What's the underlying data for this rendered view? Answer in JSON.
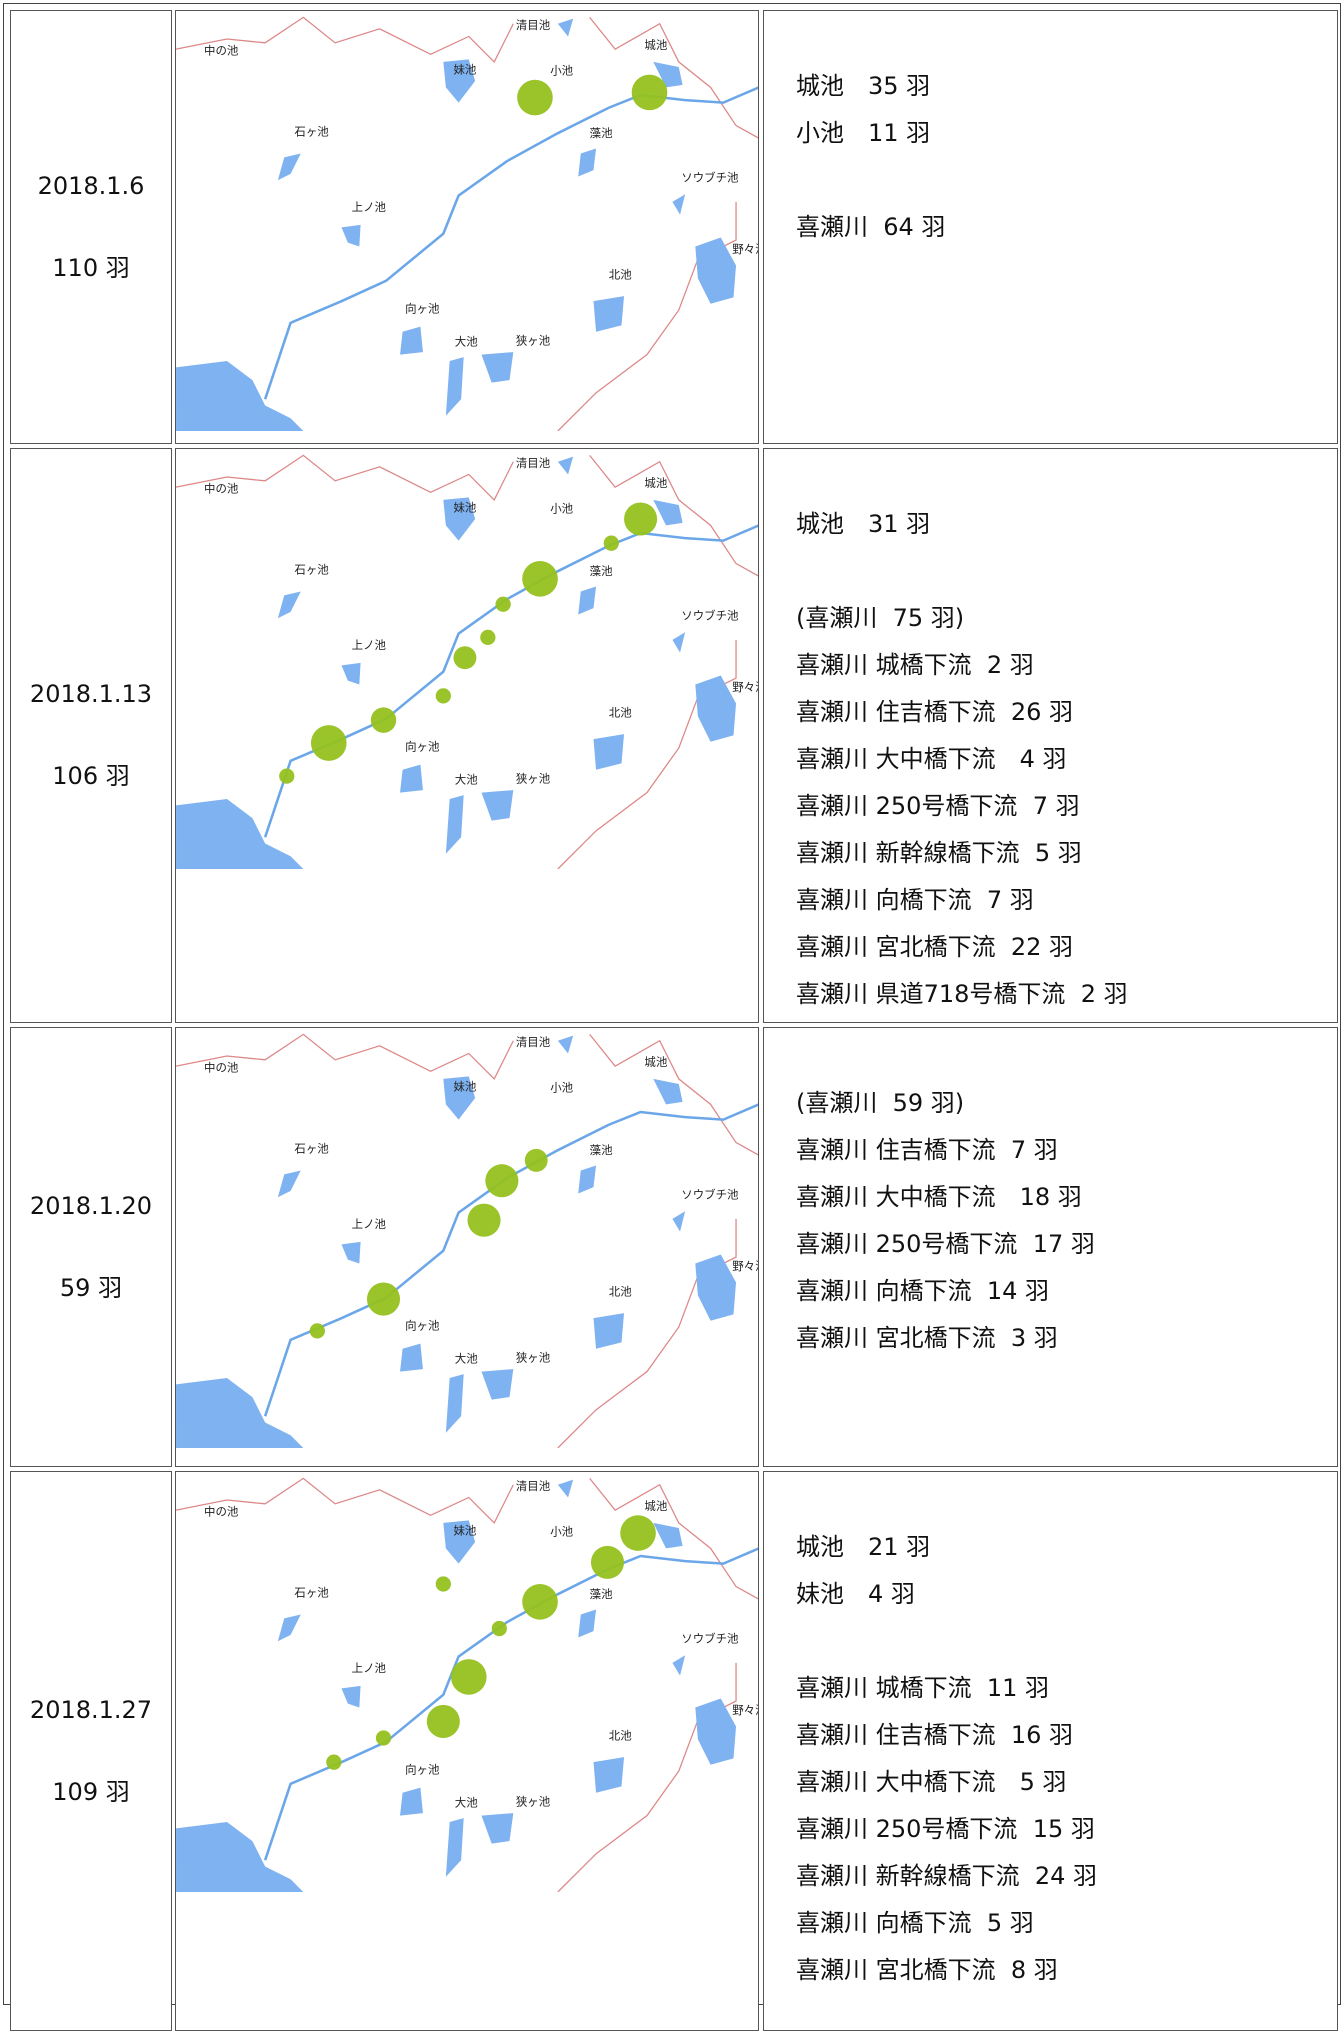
{
  "map_labels": [
    "中の池",
    "清目池",
    "妹池",
    "小池",
    "城池",
    "石ヶ池",
    "藻池",
    "ソウブチ池",
    "上ノ池",
    "野々池",
    "北池",
    "向ヶ池",
    "大池",
    "狭ヶ池"
  ],
  "rows": [
    {
      "date": "2018.1.6",
      "total": "110 羽",
      "groups": [
        [
          "城池　35 羽",
          "小池　11 羽"
        ],
        [
          "喜瀬川  64 羽"
        ]
      ]
    },
    {
      "date": "2018.1.13",
      "total": "106 羽",
      "groups": [
        [
          "城池　31 羽"
        ],
        [
          "(喜瀬川  75 羽)",
          "喜瀬川 城橋下流  2 羽",
          "喜瀬川 住吉橋下流  26 羽",
          "喜瀬川 大中橋下流　4 羽",
          "喜瀬川 250号橋下流  7 羽",
          "喜瀬川 新幹線橋下流  5 羽",
          "喜瀬川 向橋下流  7 羽",
          "喜瀬川 宮北橋下流  22 羽",
          "喜瀬川 県道718号橋下流  2 羽"
        ]
      ]
    },
    {
      "date": "2018.1.20",
      "total": "59 羽",
      "groups": [
        [
          "(喜瀬川  59 羽)",
          "喜瀬川 住吉橋下流  7 羽",
          "喜瀬川 大中橋下流　18 羽",
          "喜瀬川 250号橋下流  17 羽",
          "喜瀬川 向橋下流  14 羽",
          "喜瀬川 宮北橋下流  3 羽"
        ]
      ]
    },
    {
      "date": "2018.1.27",
      "total": "109 羽",
      "groups": [
        [
          "城池　21 羽",
          "妹池　4 羽"
        ],
        [
          "喜瀬川 城橋下流  11 羽",
          "喜瀬川 住吉橋下流  16 羽",
          "喜瀬川 大中橋下流　5 羽",
          "喜瀬川 250号橋下流  15 羽",
          "喜瀬川 新幹線橋下流  24 羽",
          "喜瀬川 向橋下流  5 羽",
          "喜瀬川 宮北橋下流  8 羽"
        ]
      ]
    }
  ]
}
